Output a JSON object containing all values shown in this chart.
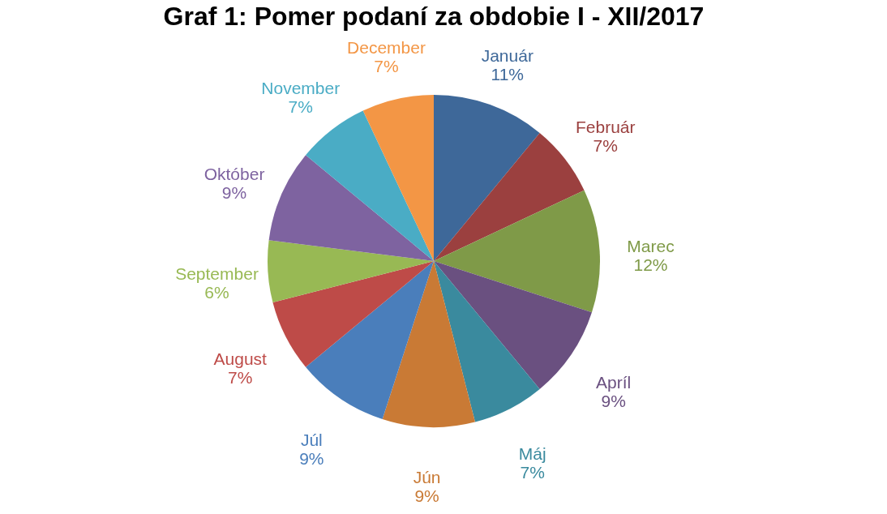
{
  "chart_data": {
    "type": "pie",
    "title": "Graf 1: Pomer podaní za obdobie I - XII/2017",
    "categories": [
      "Január",
      "Február",
      "Marec",
      "Apríl",
      "Máj",
      "Jún",
      "Júl",
      "August",
      "September",
      "Október",
      "November",
      "December"
    ],
    "values": [
      11,
      7,
      12,
      9,
      7,
      9,
      9,
      7,
      6,
      9,
      7,
      7
    ],
    "value_labels": [
      "11%",
      "7%",
      "12%",
      "9%",
      "7%",
      "9%",
      "9%",
      "7%",
      "6%",
      "9%",
      "7%",
      "7%"
    ],
    "colors": [
      "#3e6899",
      "#9b403f",
      "#7f9a48",
      "#6a5080",
      "#3a8a9e",
      "#c97a35",
      "#4a7ebb",
      "#be4b48",
      "#98b954",
      "#7e63a0",
      "#4aacc5",
      "#f39645"
    ],
    "legend": false
  }
}
